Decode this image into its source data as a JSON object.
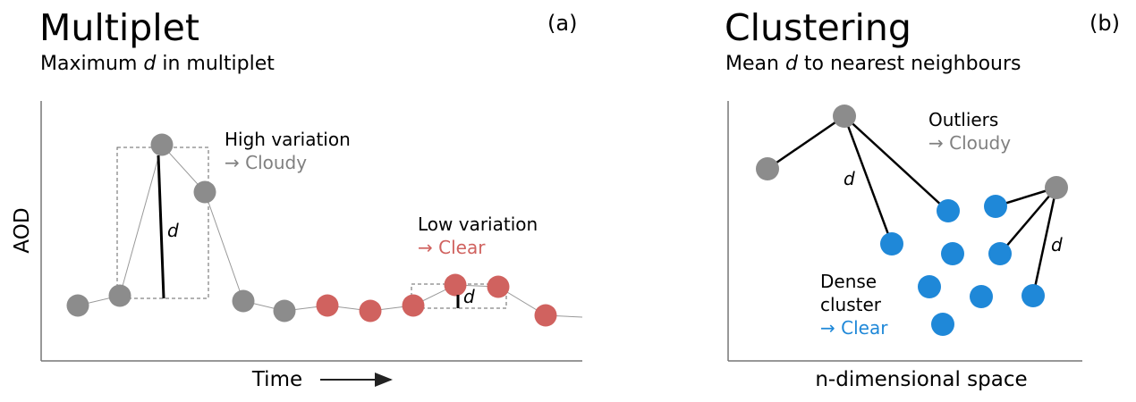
{
  "colors": {
    "cloudy": "#8c8c8c",
    "clear_time": "#d0625f",
    "clear_cluster": "#1f88d8"
  },
  "panel_a": {
    "title": "Multiplet",
    "tag": "(a)",
    "subtitle_pre": "Maximum ",
    "subtitle_var": "d",
    "subtitle_post": " in multiplet",
    "y_label": "AOD",
    "x_label": "Time",
    "high_label": "High variation",
    "high_result": "→ Cloudy",
    "low_label": "Low variation",
    "low_result": "→ Clear",
    "d_label": "d",
    "series_classes": [
      "cloudy",
      "cloudy",
      "cloudy",
      "cloudy",
      "cloudy",
      "cloudy",
      "clear",
      "clear",
      "clear",
      "clear",
      "clear",
      "clear"
    ]
  },
  "panel_b": {
    "title": "Clustering",
    "tag": "(b)",
    "subtitle_pre": "Mean ",
    "subtitle_var": "d",
    "subtitle_post": " to nearest neighbours",
    "x_label": "n-dimensional space",
    "outliers_label": "Outliers",
    "outliers_result": "→ Cloudy",
    "cluster_label_1": "Dense",
    "cluster_label_2": "cluster",
    "cluster_result": "→ Clear",
    "d_label": "d"
  }
}
